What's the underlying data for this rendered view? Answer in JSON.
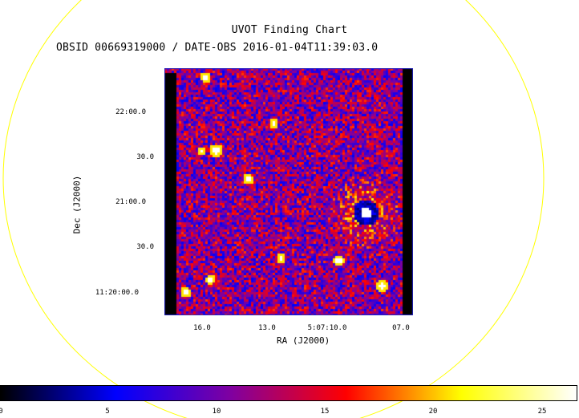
{
  "header": {
    "title": "UVOT Finding Chart",
    "subtitle": "OBSID 00669319000 / DATE-OBS 2016-01-04T11:39:03.0"
  },
  "axes": {
    "y_label": "Dec (J2000)",
    "x_label": "RA (J2000)",
    "y_ticks": [
      "22:00.0",
      "30.0",
      "21:00.0",
      "30.0",
      "11:20:00.0"
    ],
    "x_ticks": [
      "16.0",
      "13.0",
      "5:07:10.0",
      "07.0"
    ]
  },
  "colorbar": {
    "ticks": [
      "0",
      "5",
      "10",
      "15",
      "20",
      "25"
    ],
    "range": [
      0,
      27
    ],
    "stops": [
      "#000000",
      "#0000ff",
      "#8000a0",
      "#ff0000",
      "#ffff00",
      "#ffffff"
    ]
  },
  "overlay": {
    "circle_color": "#ffff00"
  }
}
